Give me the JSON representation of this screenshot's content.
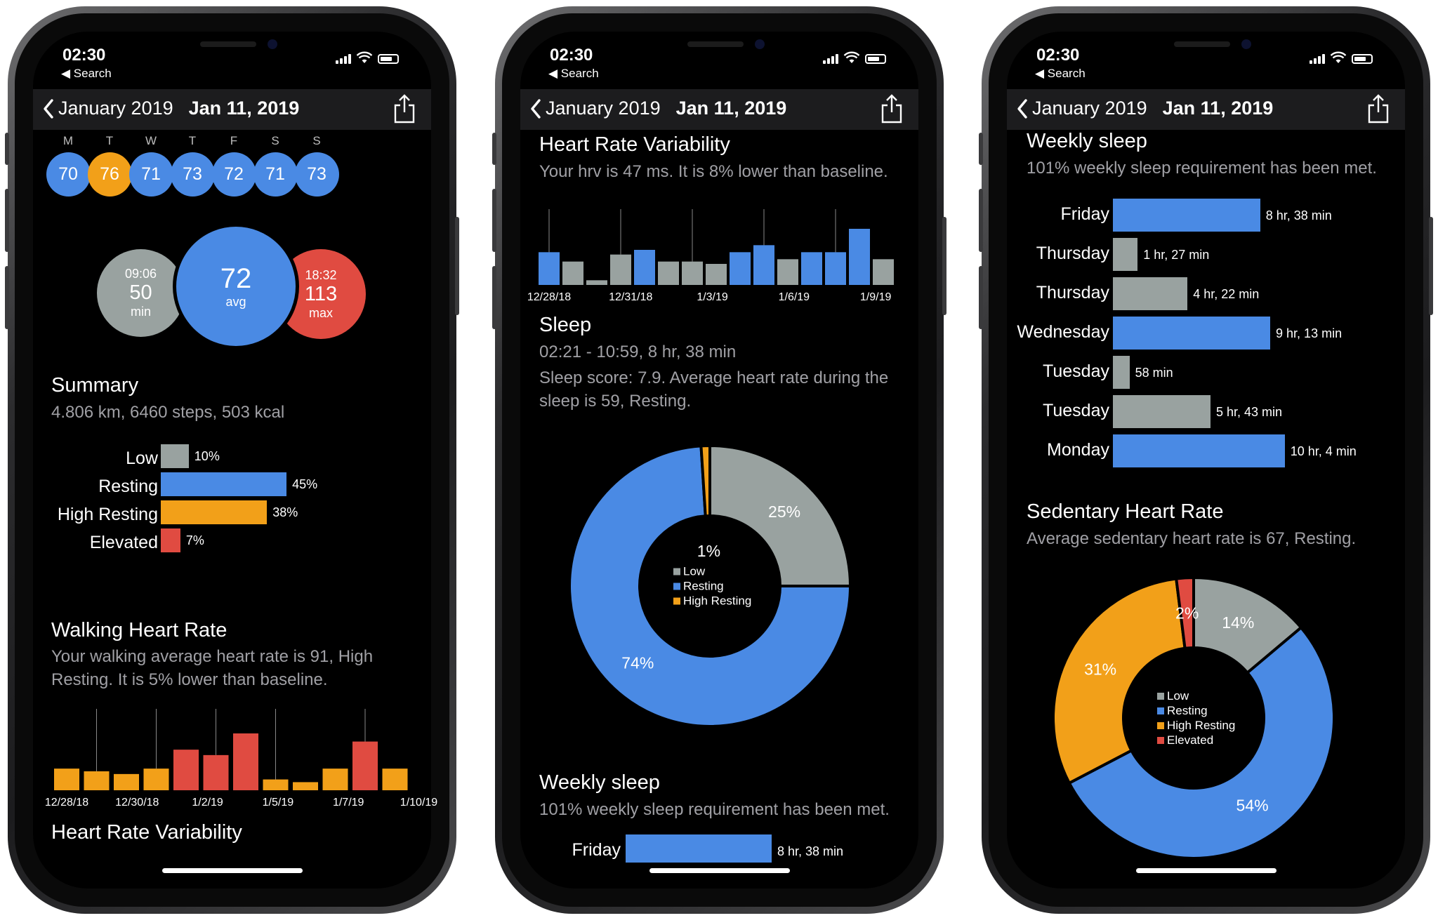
{
  "status": {
    "time": "02:30",
    "back_app": "Search"
  },
  "nav": {
    "back_label": "January 2019",
    "title": "Jan 11, 2019"
  },
  "colors": {
    "blue": "#4a8ae4",
    "gray": "#99a2a0",
    "orange": "#f2a019",
    "red": "#e04b41",
    "nav_bg": "#1c1c1e"
  },
  "screen1": {
    "week": [
      {
        "day": "M",
        "value": "70",
        "color": "blue"
      },
      {
        "day": "T",
        "value": "76",
        "color": "orange"
      },
      {
        "day": "W",
        "value": "71",
        "color": "blue"
      },
      {
        "day": "T",
        "value": "73",
        "color": "blue"
      },
      {
        "day": "F",
        "value": "72",
        "color": "blue"
      },
      {
        "day": "S",
        "value": "71",
        "color": "blue"
      },
      {
        "day": "S",
        "value": "73",
        "color": "blue"
      }
    ],
    "min": {
      "time": "09:06",
      "value": "50",
      "label": "min"
    },
    "avg": {
      "value": "72",
      "label": "avg"
    },
    "max": {
      "time": "18:32",
      "value": "113",
      "label": "max"
    },
    "summary": {
      "title": "Summary",
      "text": "4.806 km, 6460 steps, 503 kcal"
    },
    "zones": [
      {
        "label": "Low",
        "percent": 10,
        "value_label": "10%",
        "color": "gray"
      },
      {
        "label": "Resting",
        "percent": 45,
        "value_label": "45%",
        "color": "blue"
      },
      {
        "label": "High Resting",
        "percent": 38,
        "value_label": "38%",
        "color": "orange"
      },
      {
        "label": "Elevated",
        "percent": 7,
        "value_label": "7%",
        "color": "red"
      }
    ],
    "walking": {
      "title": "Walking Heart Rate",
      "text": "Your walking average heart rate is 91, High Resting. It is 5% lower than baseline."
    },
    "hrv_title": "Heart Rate Variability"
  },
  "screen2": {
    "hrv": {
      "title": "Heart Rate Variability",
      "text": "Your hrv is 47 ms. It is 8% lower than baseline."
    },
    "sleep": {
      "title": "Sleep",
      "line1": "02:21 - 10:59, 8 hr, 38 min",
      "line2": "Sleep score: 7.9. Average heart rate during the sleep is 59, Resting."
    },
    "weekly": {
      "title": "Weekly sleep",
      "text": "101% weekly sleep requirement has been met.",
      "first_day": "Friday",
      "first_value": "8 hr, 38 min"
    }
  },
  "screen3": {
    "weekly": {
      "title": "Weekly sleep",
      "text": "101% weekly sleep requirement has been met."
    },
    "sleep_days": [
      {
        "day": "Friday",
        "hours": 8.63,
        "label": "8 hr, 38 min",
        "color": "blue"
      },
      {
        "day": "Thursday",
        "hours": 1.45,
        "label": "1 hr, 27 min",
        "color": "gray"
      },
      {
        "day": "Thursday",
        "hours": 4.37,
        "label": "4 hr, 22 min",
        "color": "gray"
      },
      {
        "day": "Wednesday",
        "hours": 9.22,
        "label": "9 hr, 13 min",
        "color": "blue"
      },
      {
        "day": "Tuesday",
        "hours": 0.97,
        "label": "58 min",
        "color": "gray"
      },
      {
        "day": "Tuesday",
        "hours": 5.72,
        "label": "5 hr, 43 min",
        "color": "gray"
      },
      {
        "day": "Monday",
        "hours": 10.07,
        "label": "10 hr, 4 min",
        "color": "blue"
      }
    ],
    "sedentary": {
      "title": "Sedentary Heart Rate",
      "text": "Average sedentary heart rate is 67, Resting."
    }
  },
  "chart_data": [
    {
      "type": "bar",
      "title": "Walking Heart Rate",
      "x_ticks": [
        "12/28/18",
        "12/30/18",
        "1/2/19",
        "1/5/19",
        "1/7/19",
        "1/10/19"
      ],
      "values": [
        88,
        87,
        86,
        88,
        95,
        93,
        101,
        84,
        83,
        88,
        98,
        88
      ],
      "colors": [
        "orange",
        "orange",
        "orange",
        "orange",
        "red",
        "red",
        "red",
        "orange",
        "orange",
        "orange",
        "red",
        "orange"
      ],
      "whiskers": [
        1,
        3,
        5,
        7,
        10
      ],
      "ylim": [
        80,
        108
      ]
    },
    {
      "type": "bar",
      "title": "Heart Rate Variability",
      "x_ticks": [
        "12/28/18",
        "12/31/18",
        "1/3/19",
        "1/6/19",
        "1/9/19"
      ],
      "values": [
        50,
        46,
        38,
        49,
        51,
        46,
        46,
        45,
        50,
        53,
        47,
        50,
        50,
        60,
        47
      ],
      "colors": [
        "blue",
        "gray",
        "gray",
        "gray",
        "blue",
        "gray",
        "gray",
        "gray",
        "blue",
        "blue",
        "gray",
        "blue",
        "blue",
        "blue",
        "gray"
      ],
      "whiskers": [
        0,
        3,
        6,
        9,
        12
      ],
      "ylim": [
        36,
        66
      ]
    },
    {
      "type": "pie",
      "title": "Sleep",
      "legend": [
        "Low",
        "Resting",
        "High Resting"
      ],
      "values": [
        25,
        74,
        1
      ],
      "slice_labels": [
        "25%",
        "74%",
        "1%"
      ],
      "colors": [
        "gray",
        "blue",
        "orange"
      ]
    },
    {
      "type": "bar",
      "title": "Weekly sleep",
      "categories": [
        "Friday",
        "Thursday",
        "Thursday",
        "Wednesday",
        "Tuesday",
        "Tuesday",
        "Monday"
      ],
      "values": [
        8.63,
        1.45,
        4.37,
        9.22,
        0.97,
        5.72,
        10.07
      ],
      "value_labels": [
        "8 hr, 38 min",
        "1 hr, 27 min",
        "4 hr, 22 min",
        "9 hr, 13 min",
        "58 min",
        "5 hr, 43 min",
        "10 hr, 4 min"
      ]
    },
    {
      "type": "pie",
      "title": "Sedentary Heart Rate",
      "legend": [
        "Low",
        "Resting",
        "High Resting",
        "Elevated"
      ],
      "values": [
        14,
        54,
        31,
        2
      ],
      "slice_labels": [
        "14%",
        "54%",
        "31%",
        "2%"
      ],
      "colors": [
        "gray",
        "blue",
        "orange",
        "red"
      ]
    }
  ]
}
